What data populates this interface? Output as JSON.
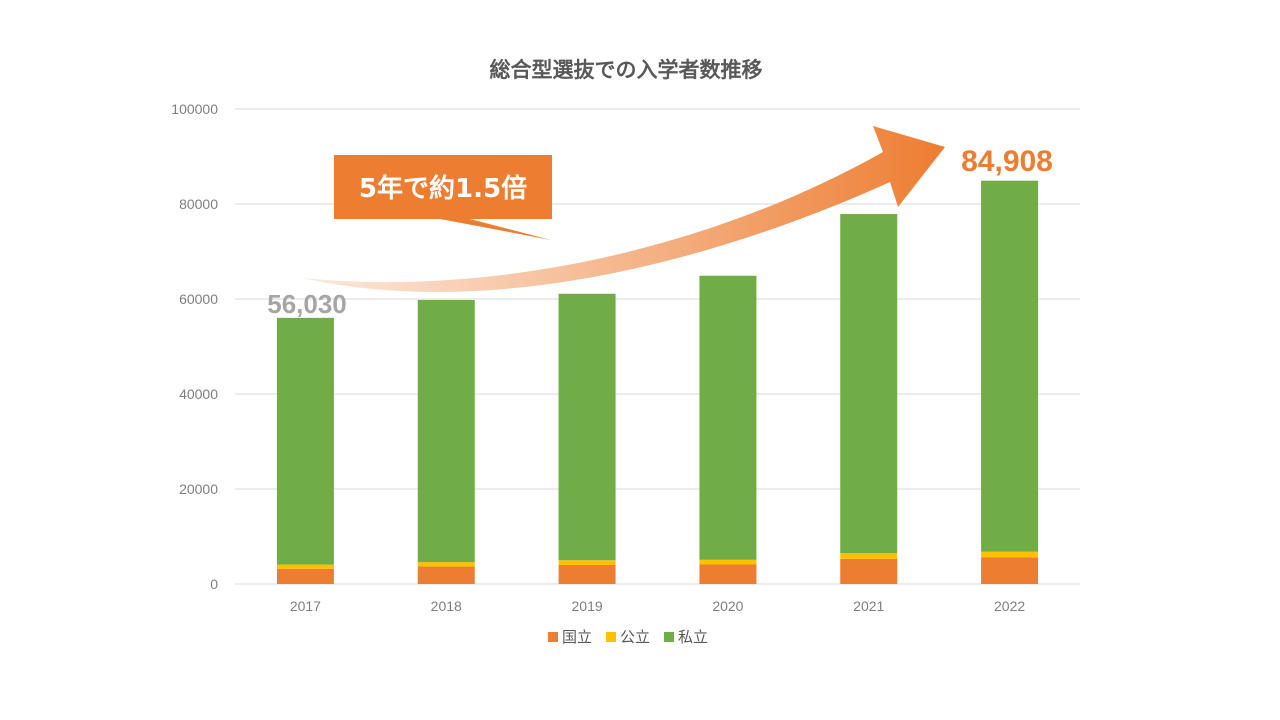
{
  "chart_data": {
    "type": "bar",
    "stacked": true,
    "title": "総合型選抜での入学者数推移",
    "categories": [
      "2017",
      "2018",
      "2019",
      "2020",
      "2021",
      "2022"
    ],
    "series": [
      {
        "name": "国立",
        "color": "#ed7d31",
        "values": [
          3200,
          3700,
          4000,
          4100,
          5300,
          5600
        ]
      },
      {
        "name": "公立",
        "color": "#ffc000",
        "values": [
          900,
          900,
          1000,
          1000,
          1200,
          1200
        ]
      },
      {
        "name": "私立",
        "color": "#70ad47",
        "values": [
          51930,
          55200,
          56100,
          59800,
          71400,
          78108
        ]
      }
    ],
    "ylim": [
      0,
      100000
    ],
    "yticks": [
      "0",
      "20000",
      "40000",
      "60000",
      "80000",
      "100000"
    ],
    "grid": true,
    "legend_position": "bottom",
    "annotations": {
      "callout": "5年で約1.5倍",
      "start_total": "56,030",
      "end_total": "84,908"
    }
  }
}
